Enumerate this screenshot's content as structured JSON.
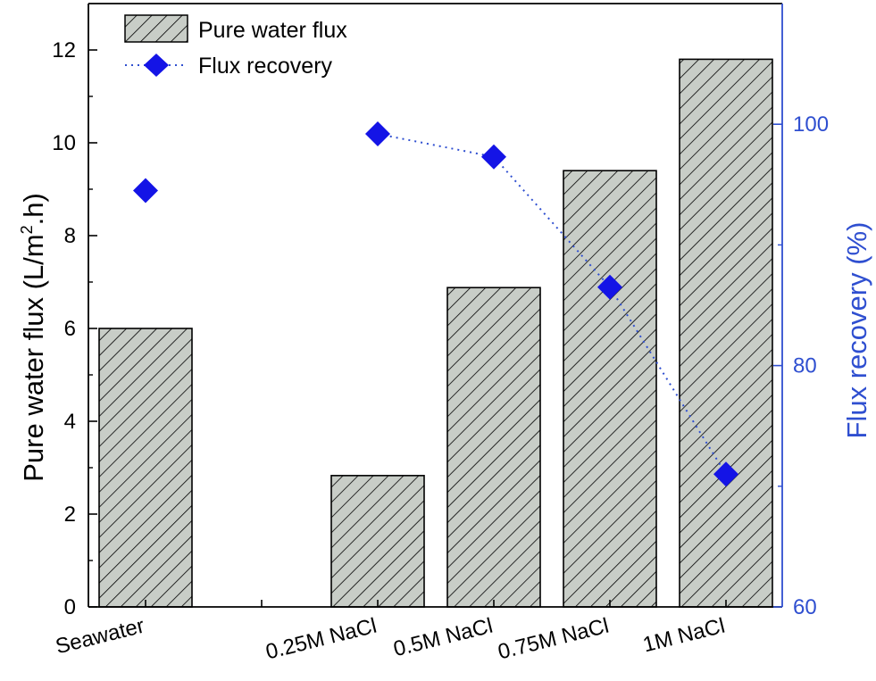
{
  "chart_data": {
    "type": "bar",
    "categories": [
      "Seawater",
      "",
      "0.25M NaCl",
      "0.5M NaCl",
      "0.75M NaCl",
      "1M NaCl"
    ],
    "series": [
      {
        "name": "Pure water flux",
        "type": "bar",
        "axis": "left",
        "values": [
          6.0,
          null,
          2.83,
          6.88,
          9.4,
          11.8
        ]
      },
      {
        "name": "Flux recovery",
        "type": "scatter-line",
        "axis": "right",
        "values": [
          94.5,
          null,
          99.2,
          97.3,
          86.5,
          71.0
        ],
        "line_connects": [
          2,
          3,
          4,
          5
        ]
      }
    ],
    "ylabel_left": {
      "prefix": "Pure water flux (L/m",
      "sup": "2",
      "suffix": ".h)"
    },
    "ylabel_right": "Flux recovery (%)",
    "ylim_left": [
      0,
      13
    ],
    "ylim_right": [
      60,
      110
    ],
    "yticks_left": [
      0,
      2,
      4,
      6,
      8,
      10,
      12
    ],
    "yticks_right": [
      60,
      80,
      100
    ],
    "legend_position": "top-left",
    "grid": false,
    "colors": {
      "bar_fill": "#c8cdc7",
      "bar_hatch": "#000000",
      "marker": "#1414e6",
      "right_axis": "#2f4fd0",
      "left_axis": "#000000"
    }
  }
}
